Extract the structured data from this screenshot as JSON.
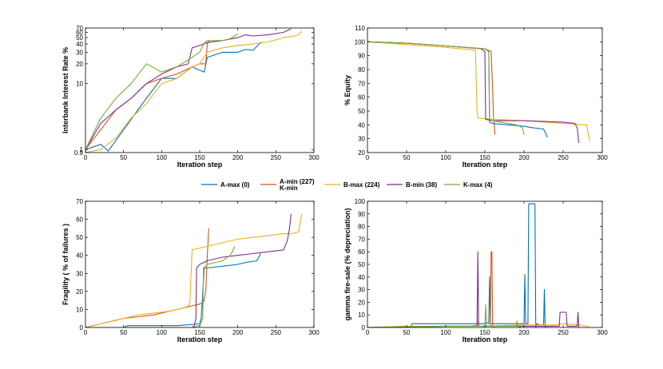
{
  "figure_title": "",
  "colors": {
    "A-max": "#0072BD",
    "A-min": "#D95319",
    "B-max": "#EDB120",
    "B-min": "#7E2F8E",
    "K-max": "#77AC30"
  },
  "legend": {
    "placement": "center-between-rows",
    "entries": [
      {
        "series": "A-max",
        "label": "A-max (0)"
      },
      {
        "series": "A-min",
        "label": "A-min (227)",
        "label2": "K-min"
      },
      {
        "series": "B-max",
        "label": "B-max (224)"
      },
      {
        "series": "B-min",
        "label": "B-min (38)"
      },
      {
        "series": "K-max",
        "label": "K-max (4)"
      }
    ]
  },
  "chart_data": [
    {
      "type": "line",
      "id": "interest",
      "title": "",
      "xlabel": "Iteration step",
      "ylabel": "Interbank Interest Rate %",
      "xlim": [
        0,
        300
      ],
      "xticks": [
        0,
        50,
        100,
        150,
        200,
        250,
        300
      ],
      "ylim": [
        0.9,
        70
      ],
      "yscale": "log",
      "yticks": [
        0.9,
        1,
        10,
        20,
        30,
        40,
        50,
        60,
        70
      ],
      "series": [
        {
          "name": "A-max",
          "x": [
            0,
            20,
            30,
            50,
            80,
            100,
            120,
            140,
            150,
            156,
            160,
            180,
            200,
            210,
            220,
            230,
            232
          ],
          "y": [
            1,
            1.2,
            0.95,
            2,
            6,
            12,
            12,
            18,
            16,
            15,
            25,
            30,
            30,
            33,
            32,
            42,
            42
          ]
        },
        {
          "name": "A-min",
          "x": [
            0,
            20,
            40,
            60,
            80,
            100,
            120,
            140,
            150,
            158,
            160,
            162,
            163
          ],
          "y": [
            1,
            2,
            4,
            6,
            10,
            12,
            14,
            18,
            20,
            20,
            40,
            44,
            44
          ]
        },
        {
          "name": "B-max",
          "x": [
            0,
            20,
            40,
            60,
            80,
            100,
            120,
            140,
            150,
            160,
            180,
            200,
            220,
            240,
            260,
            275,
            280,
            284
          ],
          "y": [
            0.9,
            1,
            1.5,
            3,
            5,
            10,
            12,
            18,
            20,
            30,
            35,
            38,
            40,
            43,
            50,
            53,
            55,
            63
          ]
        },
        {
          "name": "B-min",
          "x": [
            0,
            20,
            40,
            60,
            80,
            100,
            120,
            135,
            140,
            150,
            160,
            180,
            200,
            210,
            220,
            240,
            260,
            270
          ],
          "y": [
            1,
            2.5,
            4,
            6,
            10,
            14,
            18,
            20,
            35,
            38,
            42,
            45,
            50,
            55,
            53,
            55,
            60,
            68
          ]
        },
        {
          "name": "K-max",
          "x": [
            0,
            20,
            40,
            60,
            80,
            100,
            120,
            140,
            150,
            155,
            160,
            180,
            190,
            200
          ],
          "y": [
            1,
            3,
            6,
            10,
            20,
            15,
            18,
            25,
            30,
            40,
            45,
            45,
            48,
            57
          ]
        }
      ]
    },
    {
      "type": "line",
      "id": "equity",
      "title": "",
      "xlabel": "Iteration step",
      "ylabel": "% Equity",
      "xlim": [
        0,
        300
      ],
      "xticks": [
        0,
        50,
        100,
        150,
        200,
        250,
        300
      ],
      "ylim": [
        20,
        110
      ],
      "yticks": [
        20,
        30,
        40,
        50,
        60,
        70,
        80,
        90,
        100,
        110
      ],
      "series": [
        {
          "name": "A-max",
          "x": [
            0,
            50,
            100,
            150,
            155,
            156,
            160,
            180,
            200,
            210,
            225,
            230
          ],
          "y": [
            100,
            99,
            97,
            95,
            93,
            42,
            41,
            40,
            39,
            38,
            37,
            31
          ]
        },
        {
          "name": "A-min",
          "x": [
            0,
            50,
            100,
            150,
            158,
            160,
            161,
            162,
            163
          ],
          "y": [
            100,
            99,
            97,
            95,
            93,
            65,
            44,
            40,
            33
          ]
        },
        {
          "name": "B-max",
          "x": [
            0,
            50,
            100,
            138,
            140,
            141,
            160,
            200,
            250,
            280,
            282,
            284
          ],
          "y": [
            100,
            98,
            96,
            94,
            50,
            45,
            44,
            43,
            41,
            40,
            34,
            28
          ]
        },
        {
          "name": "B-min",
          "x": [
            0,
            50,
            100,
            145,
            150,
            151,
            160,
            200,
            250,
            265,
            268,
            270
          ],
          "y": [
            100,
            99,
            97,
            95,
            93,
            44,
            43,
            43,
            42,
            41,
            38,
            27
          ]
        },
        {
          "name": "K-max",
          "x": [
            0,
            50,
            100,
            150,
            155,
            156,
            160,
            180,
            190,
            198,
            200
          ],
          "y": [
            100,
            99,
            97,
            95,
            93,
            44,
            43,
            41,
            40,
            38,
            33
          ]
        }
      ]
    },
    {
      "type": "line",
      "id": "fragility",
      "title": "",
      "xlabel": "Iteration step",
      "ylabel": "Fragility ( % of failures )",
      "xlim": [
        0,
        300
      ],
      "xticks": [
        0,
        50,
        100,
        150,
        200,
        250,
        300
      ],
      "ylim": [
        0,
        70
      ],
      "yticks": [
        0,
        10,
        20,
        30,
        40,
        50,
        60,
        70
      ],
      "series": [
        {
          "name": "A-max",
          "x": [
            0,
            50,
            55,
            120,
            150,
            152,
            156,
            160,
            180,
            200,
            210,
            225,
            230
          ],
          "y": [
            0,
            0,
            1,
            1,
            2,
            5,
            33,
            33,
            34,
            35,
            36,
            37,
            41
          ]
        },
        {
          "name": "A-min",
          "x": [
            0,
            10,
            30,
            50,
            70,
            90,
            110,
            130,
            140,
            150,
            155,
            158,
            160,
            162
          ],
          "y": [
            0,
            1,
            3,
            5,
            6,
            7,
            9,
            11,
            12,
            13,
            14,
            20,
            40,
            55
          ]
        },
        {
          "name": "B-max",
          "x": [
            0,
            10,
            30,
            50,
            70,
            90,
            110,
            130,
            135,
            137,
            140,
            160,
            180,
            200,
            220,
            240,
            260,
            270,
            280,
            284
          ],
          "y": [
            0,
            1,
            3,
            5,
            7,
            8,
            9,
            11,
            12,
            13,
            43,
            45,
            47,
            49,
            50,
            51,
            52,
            52,
            53,
            63
          ]
        },
        {
          "name": "B-min",
          "x": [
            0,
            140,
            143,
            145,
            146,
            150,
            160,
            180,
            200,
            220,
            240,
            260,
            265,
            268,
            270
          ],
          "y": [
            0,
            0,
            1,
            5,
            33,
            35,
            37,
            39,
            40,
            41,
            42,
            43,
            48,
            55,
            63
          ]
        },
        {
          "name": "K-max",
          "x": [
            0,
            140,
            150,
            154,
            155,
            160,
            180,
            190,
            193,
            196
          ],
          "y": [
            0,
            0,
            1,
            5,
            33,
            35,
            37,
            40,
            42,
            45
          ]
        }
      ]
    },
    {
      "type": "line",
      "id": "gamma",
      "title": "",
      "xlabel": "Iteration step",
      "ylabel": "gamma fire-sale (% depreciation)",
      "xlim": [
        0,
        300
      ],
      "xticks": [
        0,
        50,
        100,
        150,
        200,
        250,
        300
      ],
      "ylim": [
        0,
        100
      ],
      "yticks": [
        0,
        10,
        20,
        30,
        40,
        50,
        60,
        70,
        80,
        90,
        100
      ],
      "series": [
        {
          "name": "A-max",
          "x": [
            0,
            55,
            57,
            150,
            152,
            155,
            156,
            157,
            158,
            160,
            200,
            201,
            202,
            203,
            205,
            206,
            214,
            215,
            216,
            220,
            225,
            226,
            227,
            230
          ],
          "y": [
            0,
            0,
            3,
            3,
            4,
            3,
            40,
            3,
            3,
            3,
            3,
            42,
            3,
            3,
            3,
            98,
            98,
            0,
            3,
            2,
            2,
            30,
            0,
            0
          ]
        },
        {
          "name": "A-min",
          "x": [
            0,
            100,
            150,
            157,
            158,
            159,
            160,
            161,
            162
          ],
          "y": [
            0,
            1,
            1,
            1,
            60,
            60,
            1,
            1,
            0
          ]
        },
        {
          "name": "B-max",
          "x": [
            0,
            50,
            100,
            130,
            140,
            141,
            142,
            150,
            200,
            240,
            250,
            270,
            280,
            284
          ],
          "y": [
            0,
            1,
            1,
            1,
            2,
            5,
            1,
            1,
            2,
            2,
            3,
            2,
            1,
            0
          ]
        },
        {
          "name": "B-min",
          "x": [
            0,
            100,
            140,
            141,
            142,
            143,
            150,
            200,
            245,
            246,
            254,
            255,
            268,
            269,
            270
          ],
          "y": [
            0,
            1,
            1,
            60,
            1,
            1,
            1,
            1,
            1,
            12,
            12,
            1,
            1,
            12,
            0
          ]
        },
        {
          "name": "K-max",
          "x": [
            0,
            100,
            150,
            151,
            152,
            153,
            154,
            180,
            190,
            191,
            192,
            196
          ],
          "y": [
            0,
            1,
            1,
            18,
            1,
            1,
            1,
            1,
            1,
            5,
            1,
            0
          ]
        }
      ]
    }
  ]
}
